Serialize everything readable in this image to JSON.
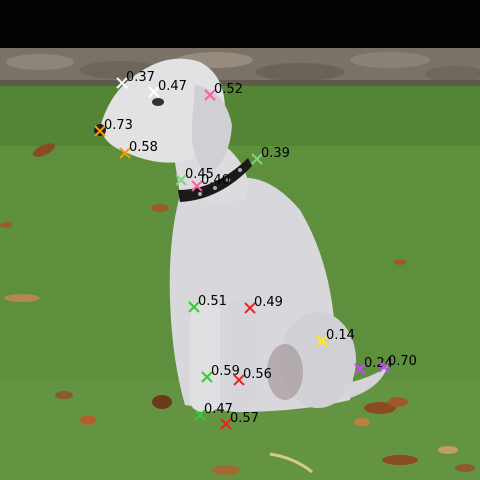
{
  "image": {
    "subject": "dog-sitting-on-grass",
    "colors": {
      "top_band": "#030303",
      "stone_wall": "#7a7266",
      "grass": "#5e8f3d",
      "grass_dark": "#4a7a2c",
      "dog_fur": "#dcdcdf",
      "dog_shadow": "#b7b7bd",
      "collar": "#1a1a1a",
      "leaf": "#8a4a22"
    }
  },
  "keypoints": [
    {
      "id": "kp-1",
      "score": "0.37",
      "color": "#ffffff"
    },
    {
      "id": "kp-2",
      "score": "0.47",
      "color": "#ffffff"
    },
    {
      "id": "kp-3",
      "score": "0.52",
      "color": "#ff5fa0"
    },
    {
      "id": "kp-4",
      "score": "0.73",
      "color": "#ff9900"
    },
    {
      "id": "kp-5",
      "score": "0.58",
      "color": "#ff9900"
    },
    {
      "id": "kp-6",
      "score": "0.39",
      "color": "#7cd67c"
    },
    {
      "id": "kp-7",
      "score": "0.45",
      "color": "#7cd67c"
    },
    {
      "id": "kp-8",
      "score": "0.40",
      "color": "#ff5fa0"
    },
    {
      "id": "kp-9",
      "score": "0.51",
      "color": "#33cc33"
    },
    {
      "id": "kp-10",
      "score": "0.49",
      "color": "#ee2222"
    },
    {
      "id": "kp-11",
      "score": "0.14",
      "color": "#ffee00"
    },
    {
      "id": "kp-12",
      "score": "0.24",
      "color": "#cc44ff"
    },
    {
      "id": "kp-13",
      "score": "0.70",
      "color": "#cc44ff"
    },
    {
      "id": "kp-14",
      "score": "0.59",
      "color": "#33cc33"
    },
    {
      "id": "kp-15",
      "score": "0.56",
      "color": "#ee2222"
    },
    {
      "id": "kp-16",
      "score": "0.47",
      "color": "#33cc33"
    },
    {
      "id": "kp-17",
      "score": "0.57",
      "color": "#ee2222"
    }
  ]
}
